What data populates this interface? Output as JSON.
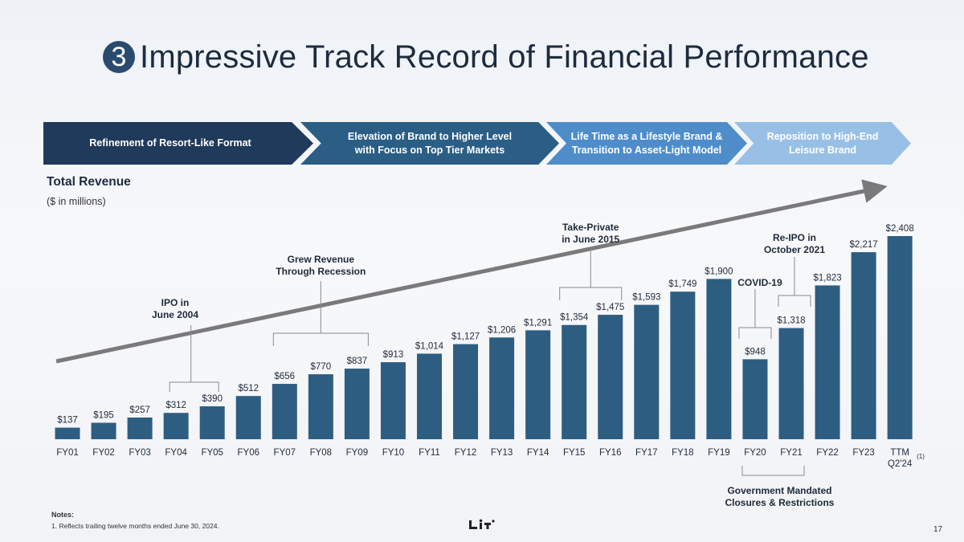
{
  "header": {
    "number": "3",
    "title": "Impressive Track Record of Financial Performance"
  },
  "phases": [
    "Refinement of Resort-Like Format",
    "Elevation of Brand to Higher Level\nwith Focus on Top Tier Markets",
    "Life Time as a Lifestyle Brand &\nTransition to Asset-Light Model",
    "Reposition to High-End\nLeisure Brand"
  ],
  "section": {
    "title": "Total Revenue",
    "units": "($ in millions)"
  },
  "chart_data": {
    "type": "bar",
    "categories": [
      "FY01",
      "FY02",
      "FY03",
      "FY04",
      "FY05",
      "FY06",
      "FY07",
      "FY08",
      "FY09",
      "FY10",
      "FY11",
      "FY12",
      "FY13",
      "FY14",
      "FY15",
      "FY16",
      "FY17",
      "FY18",
      "FY19",
      "FY20",
      "FY21",
      "FY22",
      "FY23",
      "TTM\nQ2'24"
    ],
    "values": [
      137,
      195,
      257,
      312,
      390,
      512,
      656,
      770,
      837,
      913,
      1014,
      1127,
      1206,
      1291,
      1354,
      1475,
      1593,
      1749,
      1900,
      948,
      1318,
      1823,
      2217,
      2408
    ],
    "data_labels": [
      "$137",
      "$195",
      "$257",
      "$312",
      "$390",
      "$512",
      "$656",
      "$770",
      "$837",
      "$913",
      "$1,014",
      "$1,127",
      "$1,206",
      "$1,291",
      "$1,354",
      "$1,475",
      "$1,593",
      "$1,749",
      "$1,900",
      "$948",
      "$1,318",
      "$1,823",
      "$2,217",
      "$2,408"
    ],
    "bar_color": "#2e5d82",
    "last_category_footnote": "(1)",
    "annotations": [
      {
        "text": "IPO in\nJune 2004",
        "from": 3,
        "to": 4
      },
      {
        "text": "Grew Revenue\nThrough Recession",
        "from": 6,
        "to": 8
      },
      {
        "text": "Take-Private\nin June 2015",
        "from": 14,
        "to": 15
      },
      {
        "text": "Re-IPO in\nOctober 2021",
        "from": 20,
        "to": 20
      },
      {
        "text": "COVID-19",
        "from": 19,
        "to": 19
      },
      {
        "text": "Government Mandated\nClosures & Restrictions",
        "from": 19,
        "to": 20
      }
    ]
  },
  "footer": {
    "notes_heading": "Notes:",
    "note_1": "1. Reflects trailing twelve months ended June 30, 2024.",
    "page": "17"
  }
}
